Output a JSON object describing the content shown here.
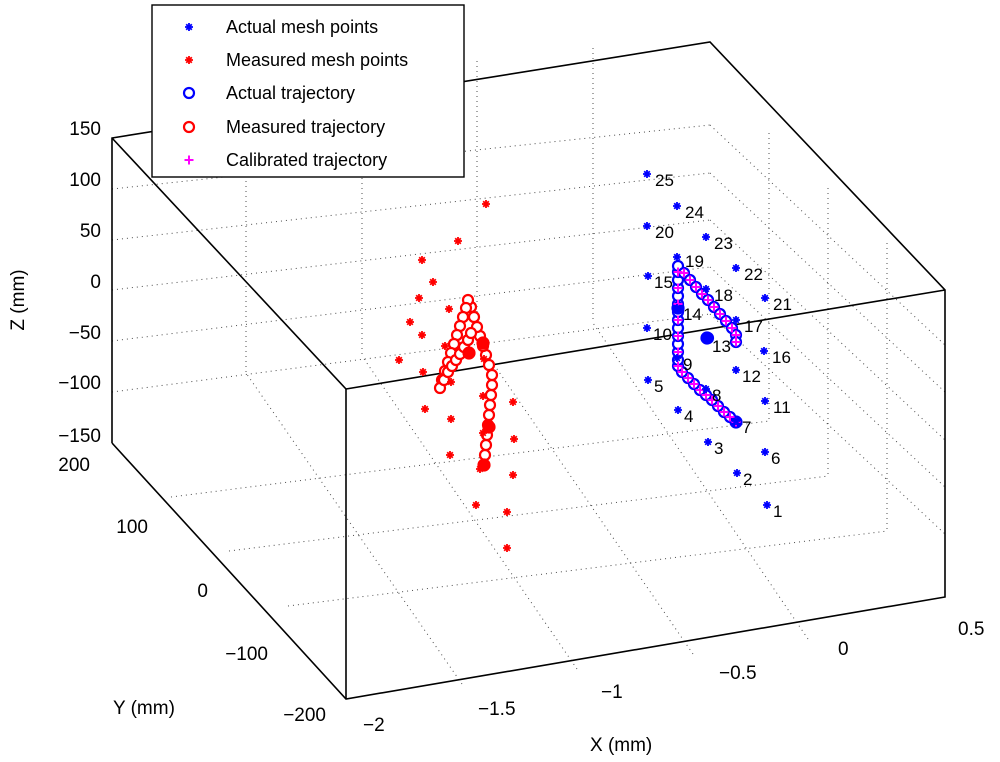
{
  "chart_data": {
    "type": "scatter",
    "dimensions": 3,
    "title": "",
    "xlabel": "X (mm)",
    "ylabel": "Y (mm)",
    "zlabel": "Z (mm)",
    "xlim": [
      -2,
      0.5
    ],
    "ylim": [
      -200,
      200
    ],
    "zlim": [
      -150,
      150
    ],
    "x_ticks": [
      "−2",
      "−1.5",
      "−1",
      "−0.5",
      "0",
      "0.5"
    ],
    "y_ticks": [
      "−200",
      "−100",
      "0",
      "100",
      "200"
    ],
    "z_ticks": [
      "−150",
      "−100",
      "−50",
      "0",
      "50",
      "100",
      "150"
    ],
    "grid": true,
    "legend_position": "top-left",
    "legend": [
      {
        "label": "Actual mesh points",
        "marker": "asterisk",
        "color": "#0000ff"
      },
      {
        "label": "Measured mesh points",
        "marker": "asterisk",
        "color": "#ff0000"
      },
      {
        "label": "Actual trajectory",
        "marker": "circle",
        "color": "#0000ff"
      },
      {
        "label": "Measured trajectory",
        "marker": "circle",
        "color": "#ff0000"
      },
      {
        "label": "Calibrated trajectory",
        "marker": "plus",
        "color": "#ff00ff"
      }
    ],
    "actual_mesh_points": [
      {
        "label": "1",
        "x": 0.0,
        "y": -50,
        "z": -110
      },
      {
        "label": "2",
        "x": -0.05,
        "y": -50,
        "z": -73
      },
      {
        "label": "3",
        "x": -0.1,
        "y": -50,
        "z": -36
      },
      {
        "label": "4",
        "x": -0.15,
        "y": -50,
        "z": 0
      },
      {
        "label": "5",
        "x": -0.2,
        "y": -50,
        "z": 37
      },
      {
        "label": "6",
        "x": 0.0,
        "y": -50,
        "z": -62
      },
      {
        "label": "7",
        "x": -0.05,
        "y": -50,
        "z": -25
      },
      {
        "label": "8",
        "x": -0.1,
        "y": -50,
        "z": 12
      },
      {
        "label": "9",
        "x": -0.15,
        "y": -50,
        "z": 48
      },
      {
        "label": "10",
        "x": -0.2,
        "y": -50,
        "z": 85
      },
      {
        "label": "11",
        "x": 0.0,
        "y": -50,
        "z": -14
      },
      {
        "label": "12",
        "x": -0.05,
        "y": -50,
        "z": 23
      },
      {
        "label": "13",
        "x": -0.1,
        "y": -50,
        "z": 60
      },
      {
        "label": "14",
        "x": -0.15,
        "y": -50,
        "z": 97
      },
      {
        "label": "15",
        "x": -0.2,
        "y": -50,
        "z": 133
      },
      {
        "label": "16",
        "x": 0.0,
        "y": -50,
        "z": 34
      },
      {
        "label": "17",
        "x": -0.05,
        "y": -50,
        "z": 71
      },
      {
        "label": "18",
        "x": -0.1,
        "y": -50,
        "z": 108
      },
      {
        "label": "19",
        "x": -0.15,
        "y": -50,
        "z": 145
      },
      {
        "label": "20",
        "x": -0.2,
        "y": -50,
        "z": 181
      },
      {
        "label": "21",
        "x": 0.0,
        "y": -50,
        "z": 82
      },
      {
        "label": "22",
        "x": -0.05,
        "y": -50,
        "z": 119
      },
      {
        "label": "23",
        "x": -0.1,
        "y": -50,
        "z": 156
      },
      {
        "label": "24",
        "x": -0.15,
        "y": -50,
        "z": 193
      },
      {
        "label": "25",
        "x": -0.2,
        "y": -50,
        "z": 229
      }
    ],
    "screen_points": {
      "actual_mesh": [
        [
          767,
          505
        ],
        [
          737,
          473
        ],
        [
          708,
          442
        ],
        [
          678,
          410
        ],
        [
          648,
          380
        ],
        [
          765,
          452
        ],
        [
          736,
          421
        ],
        [
          706,
          389
        ],
        [
          677,
          358
        ],
        [
          647,
          328
        ],
        [
          765,
          401
        ],
        [
          736,
          370
        ],
        [
          706,
          340
        ],
        [
          677,
          308
        ],
        [
          648,
          276
        ],
        [
          764,
          351
        ],
        [
          736,
          320
        ],
        [
          706,
          289
        ],
        [
          677,
          257
        ],
        [
          647,
          226
        ],
        [
          765,
          298
        ],
        [
          736,
          268
        ],
        [
          706,
          237
        ],
        [
          677,
          206
        ],
        [
          647,
          174
        ]
      ],
      "actual_mesh_label_offsets": [
        [
          6,
          8
        ],
        [
          6,
          8
        ],
        [
          6,
          8
        ],
        [
          6,
          8
        ],
        [
          6,
          8
        ],
        [
          6,
          8
        ],
        [
          6,
          8
        ],
        [
          6,
          8
        ],
        [
          6,
          8
        ],
        [
          6,
          8
        ],
        [
          8,
          8
        ],
        [
          6,
          8
        ],
        [
          6,
          8
        ],
        [
          6,
          8
        ],
        [
          6,
          8
        ],
        [
          8,
          8
        ],
        [
          8,
          8
        ],
        [
          8,
          8
        ],
        [
          8,
          6
        ],
        [
          8,
          8
        ],
        [
          8,
          8
        ],
        [
          8,
          8
        ],
        [
          8,
          8
        ],
        [
          8,
          8
        ],
        [
          8,
          8
        ]
      ],
      "measured_mesh": [
        [
          507,
          548
        ],
        [
          507,
          512
        ],
        [
          513,
          475
        ],
        [
          514,
          439
        ],
        [
          513,
          402
        ],
        [
          476,
          505
        ],
        [
          480,
          469
        ],
        [
          483,
          433
        ],
        [
          483,
          396
        ],
        [
          484,
          359
        ],
        [
          450,
          455
        ],
        [
          451,
          419
        ],
        [
          451,
          382
        ],
        [
          445,
          346
        ],
        [
          449,
          309
        ],
        [
          425,
          409
        ],
        [
          423,
          372
        ],
        [
          422,
          335
        ],
        [
          419,
          298
        ],
        [
          422,
          260
        ],
        [
          399,
          360
        ],
        [
          410,
          322
        ],
        [
          433,
          282
        ],
        [
          458,
          241
        ],
        [
          486,
          204
        ]
      ],
      "actual_traj": [
        [
          736,
          422
        ],
        [
          730,
          417
        ],
        [
          724,
          412
        ],
        [
          718,
          406
        ],
        [
          712,
          400
        ],
        [
          706,
          395
        ],
        [
          700,
          390
        ],
        [
          694,
          384
        ],
        [
          688,
          378
        ],
        [
          682,
          372
        ],
        [
          678,
          366
        ],
        [
          678,
          360
        ],
        [
          678,
          352
        ],
        [
          678,
          344
        ],
        [
          678,
          336
        ],
        [
          678,
          328
        ],
        [
          678,
          320
        ],
        [
          678,
          312
        ],
        [
          678,
          304
        ],
        [
          678,
          296
        ],
        [
          678,
          288
        ],
        [
          678,
          280
        ],
        [
          678,
          272
        ],
        [
          678,
          266
        ],
        [
          684,
          273
        ],
        [
          690,
          280
        ],
        [
          696,
          287
        ],
        [
          702,
          294
        ],
        [
          708,
          300
        ],
        [
          714,
          307
        ],
        [
          720,
          314
        ],
        [
          726,
          321
        ],
        [
          732,
          328
        ],
        [
          736,
          335
        ],
        [
          736,
          342
        ],
        [
          708,
          338
        ]
      ],
      "measured_traj": [
        [
          484,
          465
        ],
        [
          485,
          455
        ],
        [
          486,
          445
        ],
        [
          487,
          435
        ],
        [
          488,
          425
        ],
        [
          489,
          415
        ],
        [
          490,
          405
        ],
        [
          491,
          395
        ],
        [
          492,
          385
        ],
        [
          492,
          375
        ],
        [
          489,
          365
        ],
        [
          486,
          355
        ],
        [
          483,
          346
        ],
        [
          480,
          336
        ],
        [
          477,
          327
        ],
        [
          474,
          317
        ],
        [
          471,
          307
        ],
        [
          468,
          300
        ],
        [
          466,
          308
        ],
        [
          463,
          317
        ],
        [
          460,
          326
        ],
        [
          457,
          335
        ],
        [
          454,
          344
        ],
        [
          451,
          353
        ],
        [
          448,
          362
        ],
        [
          445,
          371
        ],
        [
          442,
          380
        ],
        [
          440,
          388
        ],
        [
          444,
          380
        ],
        [
          448,
          372
        ],
        [
          452,
          366
        ],
        [
          456,
          360
        ],
        [
          460,
          354
        ],
        [
          464,
          347
        ],
        [
          468,
          340
        ],
        [
          471,
          333
        ]
      ],
      "calibrated_traj": [
        [
          736,
          422
        ],
        [
          730,
          417
        ],
        [
          724,
          412
        ],
        [
          718,
          406
        ],
        [
          712,
          400
        ],
        [
          706,
          395
        ],
        [
          700,
          390
        ],
        [
          694,
          384
        ],
        [
          688,
          378
        ],
        [
          682,
          372
        ],
        [
          678,
          366
        ],
        [
          678,
          352
        ],
        [
          678,
          336
        ],
        [
          678,
          320
        ],
        [
          678,
          304
        ],
        [
          678,
          288
        ],
        [
          678,
          272
        ],
        [
          684,
          273
        ],
        [
          690,
          280
        ],
        [
          696,
          287
        ],
        [
          702,
          294
        ],
        [
          708,
          300
        ],
        [
          714,
          307
        ],
        [
          720,
          314
        ],
        [
          726,
          321
        ],
        [
          732,
          328
        ],
        [
          736,
          335
        ],
        [
          736,
          342
        ]
      ],
      "filled_actual": [
        [
          736,
          422
        ],
        [
          707,
          338
        ],
        [
          678,
          308
        ]
      ],
      "filled_measured": [
        [
          484,
          465
        ],
        [
          469,
          353
        ],
        [
          483,
          343
        ],
        [
          489,
          427
        ]
      ]
    }
  }
}
